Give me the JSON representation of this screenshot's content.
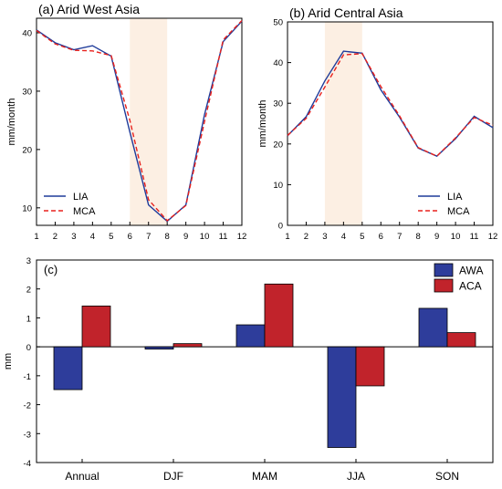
{
  "colors": {
    "lia": "#1f3b9a",
    "mca": "#e8211d",
    "awa": "#2e3d9b",
    "aca": "#c1232b",
    "shade": "#fcefe3"
  },
  "chart_data": [
    {
      "id": "a",
      "type": "line",
      "title": "(a) Arid West Asia",
      "ylabel": "mm/month",
      "x": [
        1,
        2,
        3,
        4,
        5,
        6,
        7,
        8,
        9,
        10,
        11,
        12
      ],
      "xlim": [
        1,
        12
      ],
      "ylim": [
        7,
        42.5
      ],
      "yticks": [
        10,
        20,
        30,
        40
      ],
      "shade_x": [
        6,
        8
      ],
      "series": [
        {
          "name": "LIA",
          "style": "solid",
          "values": [
            40.5,
            38.3,
            37.1,
            37.8,
            36.0,
            23.0,
            10.5,
            7.7,
            10.5,
            26.0,
            38.5,
            42.0
          ]
        },
        {
          "name": "MCA",
          "style": "dashed",
          "values": [
            40.4,
            38.1,
            37.0,
            36.9,
            36.1,
            25.0,
            11.4,
            7.8,
            10.4,
            24.8,
            38.8,
            42.1
          ]
        }
      ],
      "legend_pos": "bottom-left"
    },
    {
      "id": "b",
      "type": "line",
      "title": "(b) Arid Central Asia",
      "ylabel": "mm/month",
      "x": [
        1,
        2,
        3,
        4,
        5,
        6,
        7,
        8,
        9,
        10,
        11,
        12
      ],
      "xlim": [
        1,
        12
      ],
      "ylim": [
        0,
        50
      ],
      "yticks": [
        0,
        10,
        20,
        30,
        40,
        50
      ],
      "shade_x": [
        3,
        5
      ],
      "series": [
        {
          "name": "LIA",
          "style": "solid",
          "values": [
            22.0,
            26.7,
            35.5,
            42.8,
            42.3,
            33.3,
            26.6,
            19.0,
            17.0,
            21.3,
            26.8,
            24.0
          ]
        },
        {
          "name": "MCA",
          "style": "dashed",
          "values": [
            22.1,
            26.3,
            34.0,
            41.9,
            42.2,
            34.1,
            26.9,
            19.1,
            17.0,
            21.5,
            26.5,
            24.6
          ]
        }
      ],
      "legend_pos": "bottom-right"
    },
    {
      "id": "c",
      "type": "bar",
      "title": "(c)",
      "ylabel": "mm",
      "categories": [
        "Annual",
        "DJF",
        "MAM",
        "JJA",
        "SON"
      ],
      "ylim": [
        -4,
        3
      ],
      "yticks": [
        -4,
        -3,
        -2,
        -1,
        0,
        1,
        2,
        3
      ],
      "series": [
        {
          "name": "AWA",
          "values": [
            -1.48,
            -0.08,
            0.76,
            -3.48,
            1.33
          ]
        },
        {
          "name": "ACA",
          "values": [
            1.41,
            0.11,
            2.17,
            -1.35,
            0.49
          ]
        }
      ],
      "legend_pos": "top-right"
    }
  ]
}
